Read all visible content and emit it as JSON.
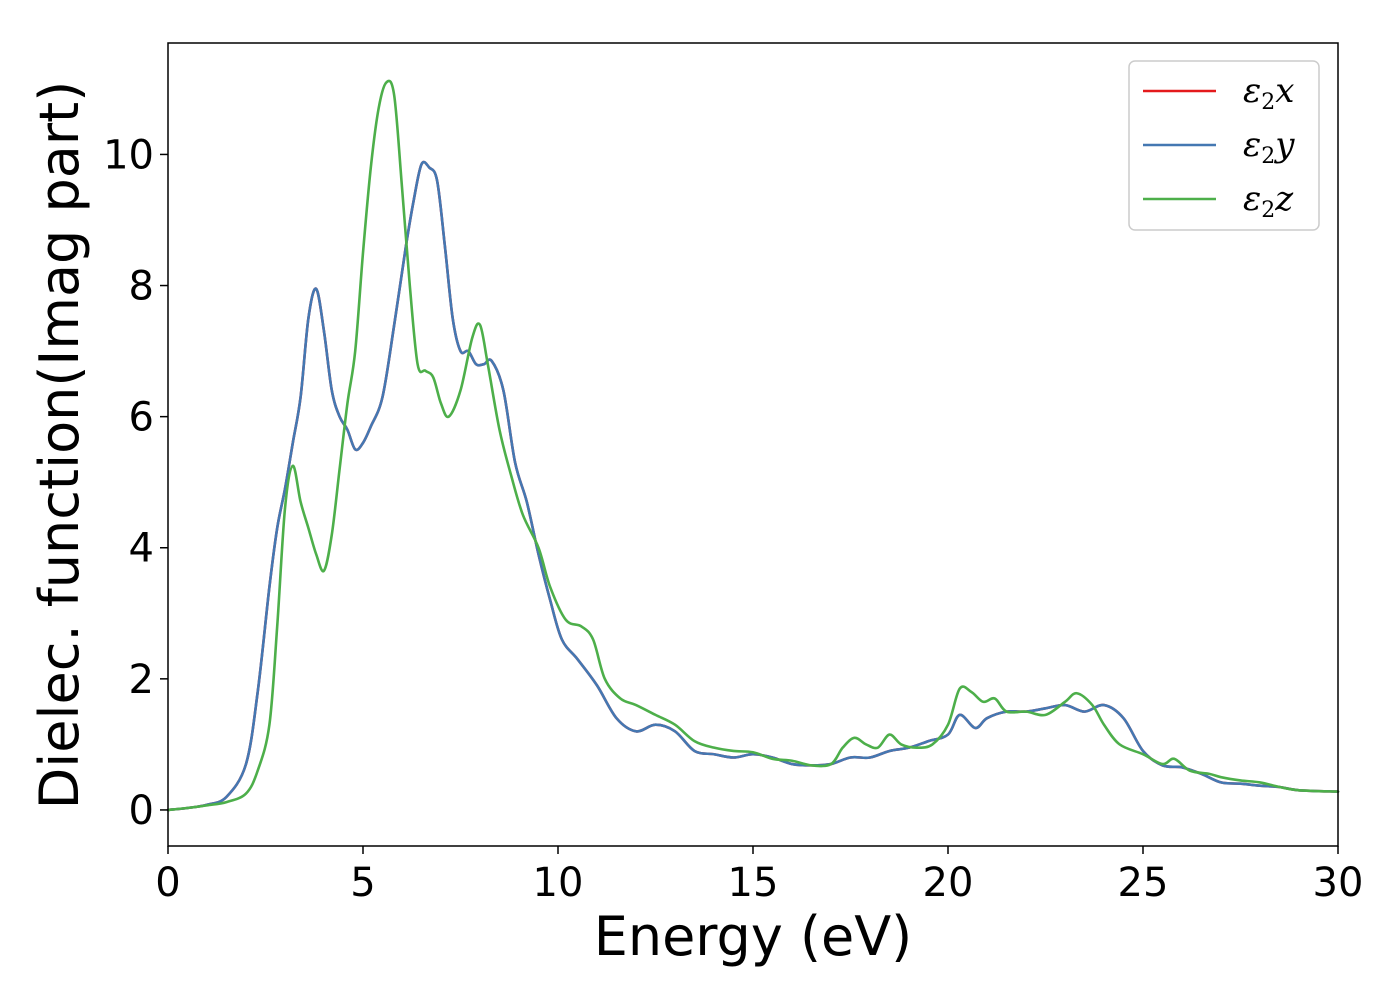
{
  "chart_data": {
    "type": "line",
    "title": "",
    "xlabel": "Energy (eV)",
    "ylabel": "Dielec. function(Imag part)",
    "xlim": [
      0,
      30
    ],
    "ylim": [
      -0.55,
      11.7
    ],
    "x_ticks": [
      0,
      5,
      10,
      15,
      20,
      25,
      30
    ],
    "y_ticks": [
      0,
      2,
      4,
      6,
      8,
      10
    ],
    "grid": false,
    "legend_placement": "top-right",
    "series": [
      {
        "name": "ε2x",
        "legend_base": "ε",
        "legend_sub": "2",
        "legend_var": "x",
        "color": "#e41a1c",
        "points": [
          [
            0,
            0
          ],
          [
            0.5,
            0.03
          ],
          [
            1,
            0.08
          ],
          [
            1.5,
            0.2
          ],
          [
            2,
            0.7
          ],
          [
            2.3,
            1.8
          ],
          [
            2.6,
            3.4
          ],
          [
            2.8,
            4.3
          ],
          [
            3.0,
            4.9
          ],
          [
            3.2,
            5.6
          ],
          [
            3.4,
            6.3
          ],
          [
            3.6,
            7.5
          ],
          [
            3.8,
            7.95
          ],
          [
            4.0,
            7.3
          ],
          [
            4.2,
            6.4
          ],
          [
            4.4,
            6.0
          ],
          [
            4.6,
            5.8
          ],
          [
            4.8,
            5.5
          ],
          [
            5.0,
            5.6
          ],
          [
            5.2,
            5.85
          ],
          [
            5.5,
            6.3
          ],
          [
            5.8,
            7.4
          ],
          [
            6.1,
            8.6
          ],
          [
            6.3,
            9.3
          ],
          [
            6.5,
            9.85
          ],
          [
            6.7,
            9.8
          ],
          [
            6.9,
            9.6
          ],
          [
            7.1,
            8.6
          ],
          [
            7.3,
            7.5
          ],
          [
            7.5,
            7.0
          ],
          [
            7.7,
            7.0
          ],
          [
            7.9,
            6.8
          ],
          [
            8.1,
            6.8
          ],
          [
            8.3,
            6.85
          ],
          [
            8.6,
            6.4
          ],
          [
            8.9,
            5.3
          ],
          [
            9.2,
            4.7
          ],
          [
            9.5,
            3.9
          ],
          [
            9.8,
            3.2
          ],
          [
            10.1,
            2.6
          ],
          [
            10.5,
            2.3
          ],
          [
            11,
            1.9
          ],
          [
            11.5,
            1.4
          ],
          [
            12,
            1.2
          ],
          [
            12.5,
            1.3
          ],
          [
            13,
            1.2
          ],
          [
            13.5,
            0.9
          ],
          [
            14,
            0.85
          ],
          [
            14.5,
            0.8
          ],
          [
            15,
            0.85
          ],
          [
            15.5,
            0.8
          ],
          [
            16,
            0.7
          ],
          [
            16.5,
            0.68
          ],
          [
            17,
            0.7
          ],
          [
            17.5,
            0.8
          ],
          [
            18,
            0.8
          ],
          [
            18.5,
            0.9
          ],
          [
            19,
            0.95
          ],
          [
            19.5,
            1.05
          ],
          [
            20,
            1.15
          ],
          [
            20.3,
            1.45
          ],
          [
            20.7,
            1.25
          ],
          [
            21,
            1.4
          ],
          [
            21.5,
            1.5
          ],
          [
            22,
            1.5
          ],
          [
            22.5,
            1.55
          ],
          [
            23,
            1.6
          ],
          [
            23.5,
            1.5
          ],
          [
            24,
            1.6
          ],
          [
            24.5,
            1.4
          ],
          [
            25,
            0.9
          ],
          [
            25.5,
            0.68
          ],
          [
            26,
            0.65
          ],
          [
            26.5,
            0.55
          ],
          [
            27,
            0.42
          ],
          [
            27.5,
            0.4
          ],
          [
            28,
            0.37
          ],
          [
            28.5,
            0.35
          ],
          [
            29,
            0.3
          ],
          [
            30,
            0.28
          ]
        ]
      },
      {
        "name": "ε2y",
        "legend_base": "ε",
        "legend_sub": "2",
        "legend_var": "y",
        "color": "#4478b2",
        "points": [
          [
            0,
            0
          ],
          [
            0.5,
            0.03
          ],
          [
            1,
            0.08
          ],
          [
            1.5,
            0.2
          ],
          [
            2,
            0.7
          ],
          [
            2.3,
            1.8
          ],
          [
            2.6,
            3.4
          ],
          [
            2.8,
            4.3
          ],
          [
            3.0,
            4.9
          ],
          [
            3.2,
            5.6
          ],
          [
            3.4,
            6.3
          ],
          [
            3.6,
            7.5
          ],
          [
            3.8,
            7.95
          ],
          [
            4.0,
            7.3
          ],
          [
            4.2,
            6.4
          ],
          [
            4.4,
            6.0
          ],
          [
            4.6,
            5.8
          ],
          [
            4.8,
            5.5
          ],
          [
            5.0,
            5.6
          ],
          [
            5.2,
            5.85
          ],
          [
            5.5,
            6.3
          ],
          [
            5.8,
            7.4
          ],
          [
            6.1,
            8.6
          ],
          [
            6.3,
            9.3
          ],
          [
            6.5,
            9.85
          ],
          [
            6.7,
            9.8
          ],
          [
            6.9,
            9.6
          ],
          [
            7.1,
            8.6
          ],
          [
            7.3,
            7.5
          ],
          [
            7.5,
            7.0
          ],
          [
            7.7,
            7.0
          ],
          [
            7.9,
            6.8
          ],
          [
            8.1,
            6.8
          ],
          [
            8.3,
            6.85
          ],
          [
            8.6,
            6.4
          ],
          [
            8.9,
            5.3
          ],
          [
            9.2,
            4.7
          ],
          [
            9.5,
            3.9
          ],
          [
            9.8,
            3.2
          ],
          [
            10.1,
            2.6
          ],
          [
            10.5,
            2.3
          ],
          [
            11,
            1.9
          ],
          [
            11.5,
            1.4
          ],
          [
            12,
            1.2
          ],
          [
            12.5,
            1.3
          ],
          [
            13,
            1.2
          ],
          [
            13.5,
            0.9
          ],
          [
            14,
            0.85
          ],
          [
            14.5,
            0.8
          ],
          [
            15,
            0.85
          ],
          [
            15.5,
            0.8
          ],
          [
            16,
            0.7
          ],
          [
            16.5,
            0.68
          ],
          [
            17,
            0.7
          ],
          [
            17.5,
            0.8
          ],
          [
            18,
            0.8
          ],
          [
            18.5,
            0.9
          ],
          [
            19,
            0.95
          ],
          [
            19.5,
            1.05
          ],
          [
            20,
            1.15
          ],
          [
            20.3,
            1.45
          ],
          [
            20.7,
            1.25
          ],
          [
            21,
            1.4
          ],
          [
            21.5,
            1.5
          ],
          [
            22,
            1.5
          ],
          [
            22.5,
            1.55
          ],
          [
            23,
            1.6
          ],
          [
            23.5,
            1.5
          ],
          [
            24,
            1.6
          ],
          [
            24.5,
            1.4
          ],
          [
            25,
            0.9
          ],
          [
            25.5,
            0.68
          ],
          [
            26,
            0.65
          ],
          [
            26.5,
            0.55
          ],
          [
            27,
            0.42
          ],
          [
            27.5,
            0.4
          ],
          [
            28,
            0.37
          ],
          [
            28.5,
            0.35
          ],
          [
            29,
            0.3
          ],
          [
            30,
            0.28
          ]
        ]
      },
      {
        "name": "ε2z",
        "legend_base": "ε",
        "legend_sub": "2",
        "legend_var": "z",
        "color": "#4daf4a",
        "points": [
          [
            0,
            0
          ],
          [
            0.5,
            0.03
          ],
          [
            1,
            0.07
          ],
          [
            1.5,
            0.12
          ],
          [
            2,
            0.25
          ],
          [
            2.3,
            0.6
          ],
          [
            2.6,
            1.3
          ],
          [
            2.8,
            2.8
          ],
          [
            3.0,
            4.6
          ],
          [
            3.2,
            5.25
          ],
          [
            3.4,
            4.7
          ],
          [
            3.6,
            4.3
          ],
          [
            3.8,
            3.9
          ],
          [
            4.0,
            3.65
          ],
          [
            4.2,
            4.2
          ],
          [
            4.4,
            5.2
          ],
          [
            4.6,
            6.2
          ],
          [
            4.8,
            7.0
          ],
          [
            5.0,
            8.5
          ],
          [
            5.2,
            9.8
          ],
          [
            5.4,
            10.7
          ],
          [
            5.6,
            11.1
          ],
          [
            5.8,
            10.9
          ],
          [
            6.0,
            9.5
          ],
          [
            6.2,
            8.0
          ],
          [
            6.4,
            6.8
          ],
          [
            6.6,
            6.7
          ],
          [
            6.8,
            6.6
          ],
          [
            7.0,
            6.2
          ],
          [
            7.2,
            6.0
          ],
          [
            7.5,
            6.4
          ],
          [
            7.8,
            7.2
          ],
          [
            8.0,
            7.4
          ],
          [
            8.2,
            6.8
          ],
          [
            8.5,
            5.8
          ],
          [
            8.8,
            5.1
          ],
          [
            9.1,
            4.5
          ],
          [
            9.5,
            4.0
          ],
          [
            9.8,
            3.4
          ],
          [
            10.2,
            2.9
          ],
          [
            10.6,
            2.8
          ],
          [
            10.9,
            2.6
          ],
          [
            11.2,
            2.0
          ],
          [
            11.6,
            1.7
          ],
          [
            12,
            1.6
          ],
          [
            12.5,
            1.45
          ],
          [
            13,
            1.3
          ],
          [
            13.5,
            1.05
          ],
          [
            14,
            0.95
          ],
          [
            14.5,
            0.9
          ],
          [
            15,
            0.88
          ],
          [
            15.5,
            0.78
          ],
          [
            16,
            0.75
          ],
          [
            16.5,
            0.68
          ],
          [
            17,
            0.7
          ],
          [
            17.3,
            0.95
          ],
          [
            17.6,
            1.1
          ],
          [
            17.9,
            1.0
          ],
          [
            18.2,
            0.95
          ],
          [
            18.5,
            1.15
          ],
          [
            18.8,
            1.0
          ],
          [
            19.2,
            0.95
          ],
          [
            19.6,
            1.0
          ],
          [
            20,
            1.3
          ],
          [
            20.3,
            1.85
          ],
          [
            20.6,
            1.8
          ],
          [
            20.9,
            1.65
          ],
          [
            21.2,
            1.7
          ],
          [
            21.5,
            1.5
          ],
          [
            22,
            1.5
          ],
          [
            22.5,
            1.45
          ],
          [
            23,
            1.65
          ],
          [
            23.3,
            1.78
          ],
          [
            23.7,
            1.6
          ],
          [
            24,
            1.3
          ],
          [
            24.4,
            1.0
          ],
          [
            25,
            0.85
          ],
          [
            25.5,
            0.7
          ],
          [
            25.8,
            0.78
          ],
          [
            26.2,
            0.6
          ],
          [
            26.7,
            0.55
          ],
          [
            27,
            0.5
          ],
          [
            27.5,
            0.45
          ],
          [
            28,
            0.42
          ],
          [
            28.5,
            0.35
          ],
          [
            29,
            0.3
          ],
          [
            30,
            0.28
          ]
        ]
      }
    ]
  }
}
